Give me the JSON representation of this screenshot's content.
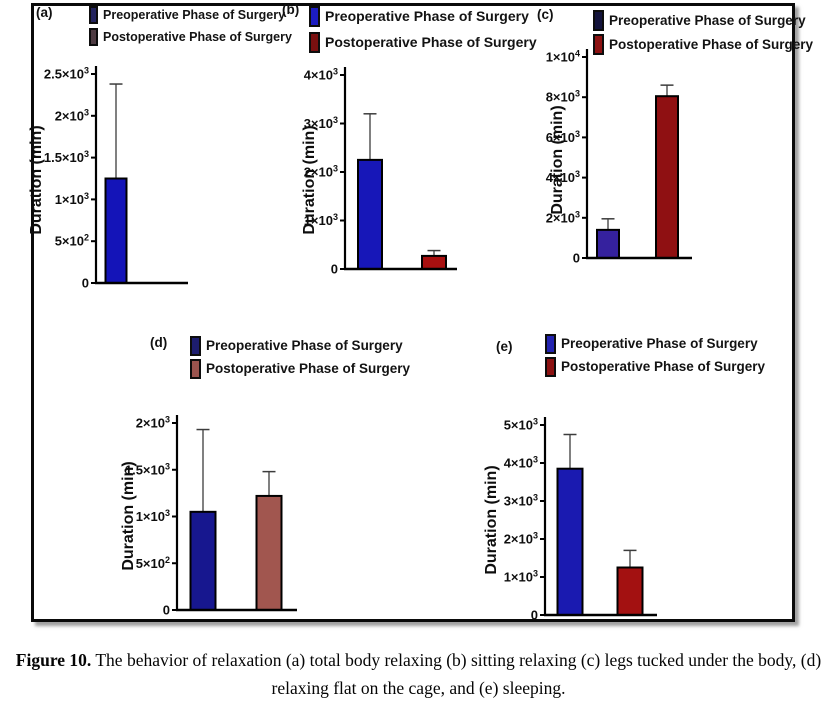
{
  "figure": {
    "caption_prefix": "Figure 10.",
    "caption_line1_rest": " The behavior of relaxation (a) total body relaxing (b) sitting relaxing (c) legs tucked under the body, (d)",
    "caption_line2": "relaxing flat on the cage, and (e) sleeping."
  },
  "legend": {
    "pre": "Preoperative Phase of Surgery",
    "post": "Postoperative Phase of Surgery"
  },
  "colors": {
    "axis": "#000000",
    "error_bar": "#3c3c3c",
    "figure_border": "#0a0a0a"
  },
  "chart_data": [
    {
      "type": "bar",
      "panel": "(a)",
      "behavior": "total body relaxing",
      "categories": [
        "Preoperative Phase of Surgery",
        "Postoperative Phase of Surgery"
      ],
      "values": [
        1250,
        0
      ],
      "error_top": [
        2380,
        null
      ],
      "ylabel": "Duration (min)",
      "ylim": [
        0,
        2500
      ],
      "ytick_values": [
        0,
        500,
        1000,
        1500,
        2000,
        2500
      ],
      "yticks": [
        {
          "t": "0",
          "s": ""
        },
        {
          "t": "5×10",
          "s": "2"
        },
        {
          "t": "1×10",
          "s": "3"
        },
        {
          "t": "1.5×10",
          "s": "3"
        },
        {
          "t": "2×10",
          "s": "3"
        },
        {
          "t": "2.5×10",
          "s": "3"
        }
      ],
      "bar_colors": [
        "#1414b8",
        "#a01010"
      ],
      "legend_swatch_colors": [
        "#23235e",
        "#4e3b42"
      ]
    },
    {
      "type": "bar",
      "panel": "(b)",
      "behavior": "sitting relaxing",
      "categories": [
        "Preoperative Phase of Surgery",
        "Postoperative Phase of Surgery"
      ],
      "values": [
        2250,
        270
      ],
      "error_top": [
        3200,
        380
      ],
      "ylabel": "Duration (min)",
      "ylim": [
        0,
        4000
      ],
      "ytick_values": [
        0,
        1000,
        2000,
        3000,
        4000
      ],
      "yticks": [
        {
          "t": "0",
          "s": ""
        },
        {
          "t": "1×10",
          "s": "3"
        },
        {
          "t": "2×10",
          "s": "3"
        },
        {
          "t": "3×10",
          "s": "3"
        },
        {
          "t": "4×10",
          "s": "3"
        }
      ],
      "bar_colors": [
        "#1717b8",
        "#a81010"
      ],
      "legend_swatch_colors": [
        "#1c1cc2",
        "#7a1010"
      ]
    },
    {
      "type": "bar",
      "panel": "(c)",
      "behavior": "legs tucked under the body",
      "categories": [
        "Preoperative Phase of Surgery",
        "Postoperative Phase of Surgery"
      ],
      "values": [
        1400,
        8050
      ],
      "error_top": [
        1950,
        8600
      ],
      "ylabel": "Duration (min)",
      "ylim": [
        0,
        10000
      ],
      "ytick_values": [
        0,
        2000,
        4000,
        6000,
        8000,
        10000
      ],
      "yticks": [
        {
          "t": "0",
          "s": ""
        },
        {
          "t": "2×10",
          "s": "3"
        },
        {
          "t": "4×10",
          "s": "3"
        },
        {
          "t": "6×10",
          "s": "3"
        },
        {
          "t": "8×10",
          "s": "3"
        },
        {
          "t": "1×10",
          "s": "4"
        }
      ],
      "bar_colors": [
        "#35219e",
        "#8f1012"
      ],
      "legend_swatch_colors": [
        "#14143c",
        "#8c1212"
      ]
    },
    {
      "type": "bar",
      "panel": "(d)",
      "behavior": "relaxing flat on the cage",
      "categories": [
        "Preoperative Phase of Surgery",
        "Postoperative Phase of Surgery"
      ],
      "values": [
        1050,
        1220
      ],
      "error_top": [
        1930,
        1480
      ],
      "ylabel": "Duration (min)",
      "ylim": [
        0,
        2000
      ],
      "ytick_values": [
        0,
        500,
        1000,
        1500,
        2000
      ],
      "yticks": [
        {
          "t": "0",
          "s": ""
        },
        {
          "t": "5×10",
          "s": "2"
        },
        {
          "t": "1×10",
          "s": "3"
        },
        {
          "t": "1.5×10",
          "s": "3"
        },
        {
          "t": "2×10",
          "s": "3"
        }
      ],
      "bar_colors": [
        "#17178f",
        "#a1564f"
      ],
      "legend_swatch_colors": [
        "#1d1d6e",
        "#9a544e"
      ]
    },
    {
      "type": "bar",
      "panel": "(e)",
      "behavior": "sleeping",
      "categories": [
        "Preoperative Phase of Surgery",
        "Postoperative Phase of Surgery"
      ],
      "values": [
        3850,
        1250
      ],
      "error_top": [
        4750,
        1700
      ],
      "ylabel": "Duration (min)",
      "ylim": [
        0,
        5000
      ],
      "ytick_values": [
        0,
        1000,
        2000,
        3000,
        4000,
        5000
      ],
      "yticks": [
        {
          "t": "0",
          "s": ""
        },
        {
          "t": "1×10",
          "s": "3"
        },
        {
          "t": "2×10",
          "s": "3"
        },
        {
          "t": "3×10",
          "s": "3"
        },
        {
          "t": "4×10",
          "s": "3"
        },
        {
          "t": "5×10",
          "s": "3"
        }
      ],
      "bar_colors": [
        "#1a1ab0",
        "#a31111"
      ],
      "legend_swatch_colors": [
        "#2323b0",
        "#8c1212"
      ]
    }
  ]
}
